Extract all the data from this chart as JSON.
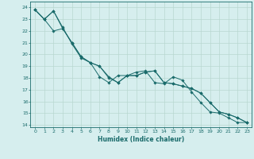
{
  "xlabel": "Humidex (Indice chaleur)",
  "xlim": [
    -0.5,
    23.5
  ],
  "ylim": [
    13.8,
    24.5
  ],
  "yticks": [
    14,
    15,
    16,
    17,
    18,
    19,
    20,
    21,
    22,
    23,
    24
  ],
  "xticks": [
    0,
    1,
    2,
    3,
    4,
    5,
    6,
    7,
    8,
    9,
    10,
    11,
    12,
    13,
    14,
    15,
    16,
    17,
    18,
    19,
    20,
    21,
    22,
    23
  ],
  "bg_color": "#d6eeee",
  "line_color": "#1a6b6b",
  "grid_color": "#b8d8d0",
  "line1_x": [
    0,
    1,
    2,
    3,
    4,
    5,
    6,
    7,
    8,
    9,
    10,
    11,
    12,
    13,
    14,
    15,
    16,
    17,
    18,
    19,
    20,
    21,
    22,
    23
  ],
  "line1_y": [
    23.8,
    23.0,
    23.7,
    22.3,
    20.9,
    19.7,
    19.3,
    19.0,
    18.0,
    17.6,
    18.2,
    18.2,
    18.5,
    18.6,
    17.6,
    17.5,
    17.3,
    17.1,
    16.7,
    15.9,
    15.1,
    14.9,
    14.6,
    14.2
  ],
  "line2_x": [
    0,
    1,
    2,
    3,
    4,
    5,
    6,
    7,
    8,
    9,
    10,
    11,
    12,
    13,
    14,
    15,
    16,
    17,
    18,
    19,
    20,
    21,
    22,
    23
  ],
  "line2_y": [
    23.8,
    23.0,
    23.7,
    22.2,
    21.0,
    19.8,
    19.3,
    19.0,
    18.1,
    17.6,
    18.2,
    18.2,
    18.5,
    18.6,
    17.6,
    17.5,
    17.3,
    17.1,
    16.7,
    15.9,
    15.1,
    14.9,
    14.6,
    14.2
  ],
  "line3_x": [
    0,
    1,
    2,
    3,
    4,
    5,
    6,
    7,
    8,
    9,
    10,
    11,
    12,
    13,
    14,
    15,
    16,
    17,
    18,
    19,
    20,
    21,
    22,
    23
  ],
  "line3_y": [
    23.8,
    23.0,
    22.0,
    22.2,
    21.0,
    19.8,
    19.3,
    18.1,
    17.6,
    18.2,
    18.2,
    18.5,
    18.6,
    17.6,
    17.5,
    18.1,
    17.8,
    16.8,
    15.9,
    15.1,
    15.0,
    14.6,
    14.2,
    14.2
  ]
}
